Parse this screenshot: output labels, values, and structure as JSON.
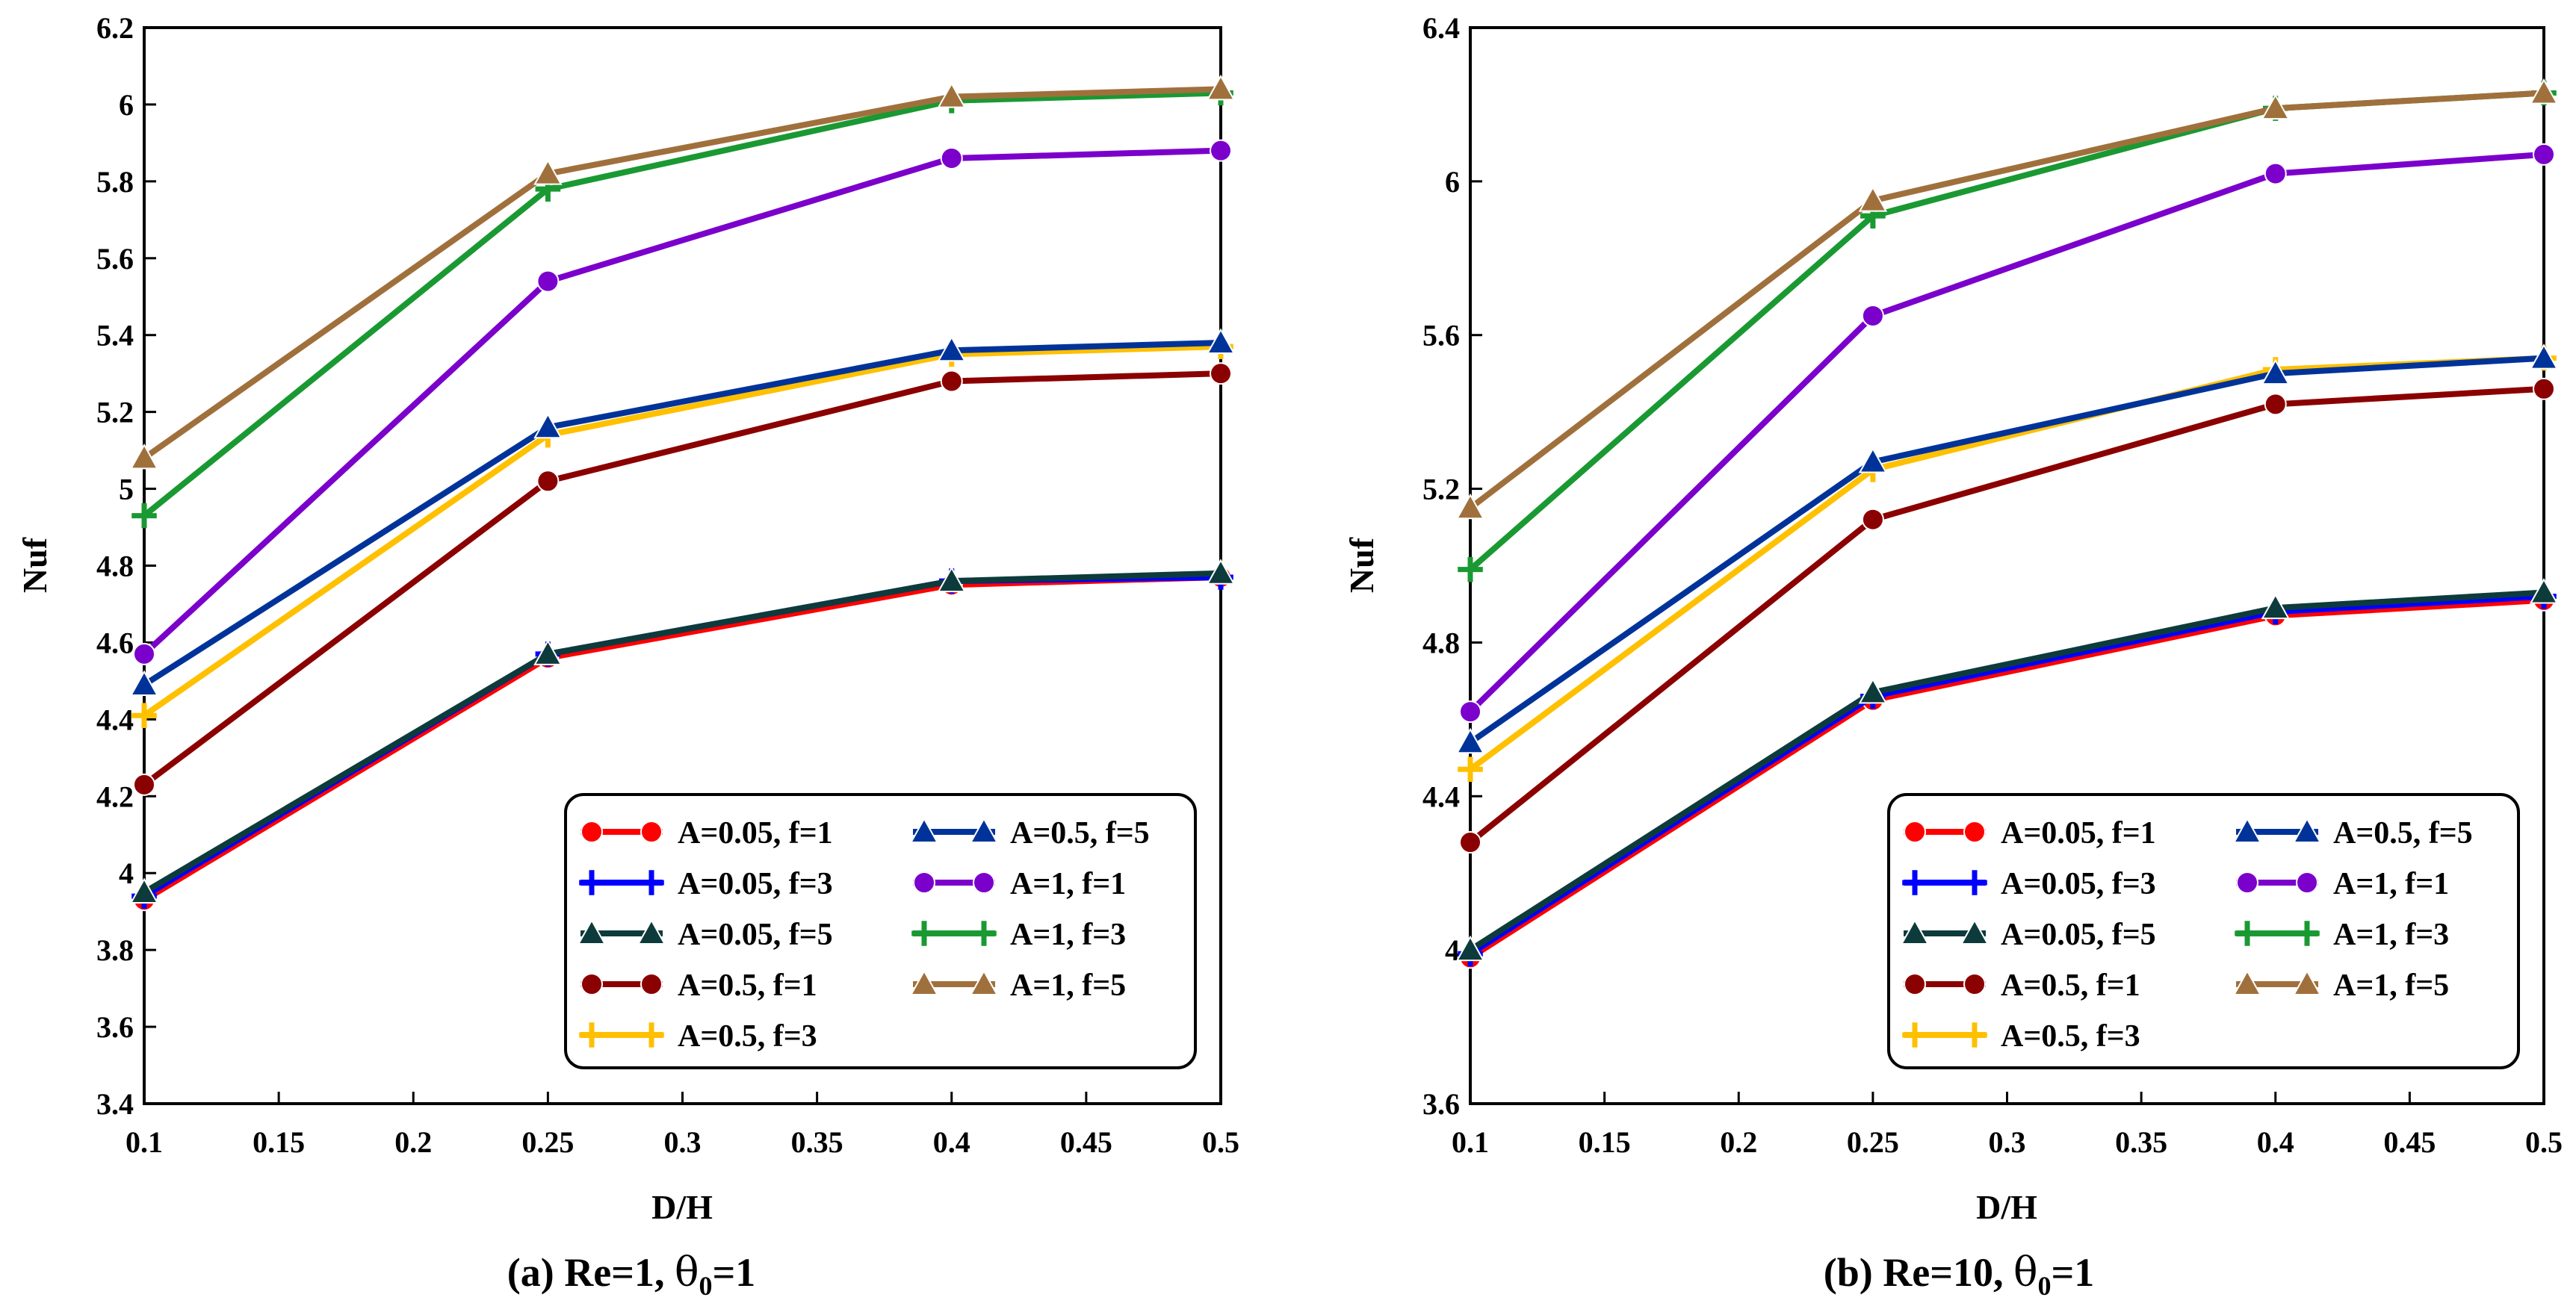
{
  "chart_data": [
    {
      "type": "line",
      "caption": "(a) Re=1, θ0=1",
      "caption_parts": {
        "prefix": "(a) Re=1, ",
        "theta": "θ",
        "sub": "0",
        "suffix": "=1"
      },
      "xlabel": "D/H",
      "ylabel": "Nuf",
      "x": [
        0.1,
        0.25,
        0.4,
        0.5
      ],
      "xlim": [
        0.1,
        0.5
      ],
      "xticks": [
        0.1,
        0.15,
        0.2,
        0.25,
        0.3,
        0.35,
        0.4,
        0.45,
        0.5
      ],
      "xtick_labels": [
        "0.1",
        "0.15",
        "0.2",
        "0.25",
        "0.3",
        "0.35",
        "0.4",
        "0.45",
        "0.5"
      ],
      "ylim": [
        3.4,
        6.2
      ],
      "yticks": [
        3.4,
        3.6,
        3.8,
        4,
        4.2,
        4.4,
        4.6,
        4.8,
        5,
        5.2,
        5.4,
        5.6,
        5.8,
        6,
        6.2
      ],
      "ytick_labels": [
        "3.4",
        "3.6",
        "3.8",
        "4",
        "4.2",
        "4.4",
        "4.6",
        "4.8",
        "5",
        "5.2",
        "5.4",
        "5.6",
        "5.8",
        "6",
        "6.2"
      ],
      "grid": false,
      "legend_position": "bottom-right",
      "series": [
        {
          "name": "A=0.05, f=1",
          "color": "#ff0000",
          "marker": "circle",
          "values": [
            3.93,
            4.56,
            4.75,
            4.77
          ]
        },
        {
          "name": "A=0.05, f=3",
          "color": "#0000ff",
          "marker": "plus",
          "values": [
            3.94,
            4.57,
            4.76,
            4.77
          ]
        },
        {
          "name": "A=0.05, f=5",
          "color": "#0d3b3b",
          "marker": "triangle",
          "values": [
            3.95,
            4.57,
            4.76,
            4.78
          ]
        },
        {
          "name": "A=0.5, f=1",
          "color": "#8b0000",
          "marker": "circle",
          "values": [
            4.23,
            5.02,
            5.28,
            5.3
          ]
        },
        {
          "name": "A=0.5, f=3",
          "color": "#ffc000",
          "marker": "plus",
          "values": [
            4.41,
            5.14,
            5.35,
            5.37
          ]
        },
        {
          "name": "A=0.5, f=5",
          "color": "#003399",
          "marker": "triangle",
          "values": [
            4.49,
            5.16,
            5.36,
            5.38
          ]
        },
        {
          "name": "A=1, f=1",
          "color": "#7b00cc",
          "marker": "circle",
          "values": [
            4.57,
            5.54,
            5.86,
            5.88
          ]
        },
        {
          "name": "A=1, f=3",
          "color": "#1a9933",
          "marker": "plus",
          "values": [
            4.93,
            5.78,
            6.01,
            6.03
          ]
        },
        {
          "name": "A=1, f=5",
          "color": "#a0703c",
          "marker": "triangle",
          "values": [
            5.08,
            5.82,
            6.02,
            6.04
          ]
        }
      ]
    },
    {
      "type": "line",
      "caption": "(b) Re=10, θ0=1",
      "caption_parts": {
        "prefix": "(b) Re=10, ",
        "theta": "θ",
        "sub": "0",
        "suffix": "=1"
      },
      "xlabel": "D/H",
      "ylabel": "Nuf",
      "x": [
        0.1,
        0.25,
        0.4,
        0.5
      ],
      "xlim": [
        0.1,
        0.5
      ],
      "xticks": [
        0.1,
        0.15,
        0.2,
        0.25,
        0.3,
        0.35,
        0.4,
        0.45,
        0.5
      ],
      "xtick_labels": [
        "0.1",
        "0.15",
        "0.2",
        "0.25",
        "0.3",
        "0.35",
        "0.4",
        "0.45",
        "0.5"
      ],
      "ylim": [
        3.6,
        6.4
      ],
      "yticks": [
        3.6,
        4,
        4.4,
        4.8,
        5.2,
        5.6,
        6,
        6.4
      ],
      "ytick_labels": [
        "3.6",
        "4",
        "4.4",
        "4.8",
        "5.2",
        "5.6",
        "6",
        "6.4"
      ],
      "grid": false,
      "legend_position": "bottom-right",
      "series": [
        {
          "name": "A=0.05, f=1",
          "color": "#ff0000",
          "marker": "circle",
          "values": [
            3.98,
            4.65,
            4.87,
            4.91
          ]
        },
        {
          "name": "A=0.05, f=3",
          "color": "#0000ff",
          "marker": "plus",
          "values": [
            3.99,
            4.66,
            4.88,
            4.92
          ]
        },
        {
          "name": "A=0.05, f=5",
          "color": "#0d3b3b",
          "marker": "triangle",
          "values": [
            4.0,
            4.67,
            4.89,
            4.93
          ]
        },
        {
          "name": "A=0.5, f=1",
          "color": "#8b0000",
          "marker": "circle",
          "values": [
            4.28,
            5.12,
            5.42,
            5.46
          ]
        },
        {
          "name": "A=0.5, f=3",
          "color": "#ffc000",
          "marker": "plus",
          "values": [
            4.47,
            5.25,
            5.51,
            5.54
          ]
        },
        {
          "name": "A=0.5, f=5",
          "color": "#003399",
          "marker": "triangle",
          "values": [
            4.54,
            5.27,
            5.5,
            5.54
          ]
        },
        {
          "name": "A=1, f=1",
          "color": "#7b00cc",
          "marker": "circle",
          "values": [
            4.62,
            5.65,
            6.02,
            6.07
          ]
        },
        {
          "name": "A=1, f=3",
          "color": "#1a9933",
          "marker": "plus",
          "values": [
            4.99,
            5.91,
            6.19,
            6.23
          ]
        },
        {
          "name": "A=1, f=5",
          "color": "#a0703c",
          "marker": "triangle",
          "values": [
            5.15,
            5.95,
            6.19,
            6.23
          ]
        }
      ]
    }
  ]
}
